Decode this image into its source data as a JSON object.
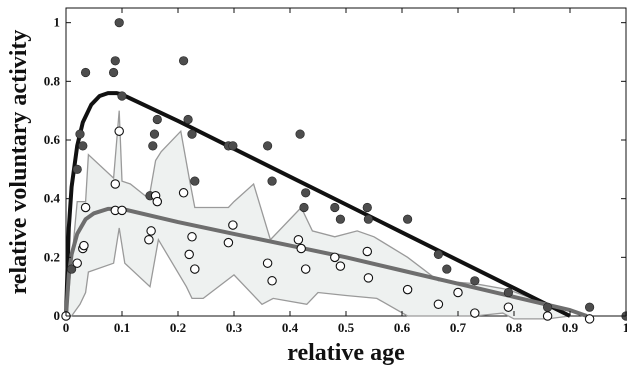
{
  "chart_data": {
    "type": "scatter",
    "xlabel": "relative age",
    "ylabel": "relative voluntary activity",
    "xlim": [
      0,
      1
    ],
    "ylim": [
      0,
      1.05
    ],
    "xticks": [
      "0",
      "0.1",
      "0.2",
      "0.3",
      "0.4",
      "0.5",
      "0.6",
      "0.7",
      "0.8",
      "0.9",
      "1"
    ],
    "yticks": [
      "0",
      "0.2",
      "0.4",
      "0.6",
      "0.8",
      "1"
    ],
    "grid": false,
    "colors": {
      "filled_points": "#4d4d4d",
      "upper_curve": "#111111",
      "lower_curve": "#6e6e6e",
      "band_fill": "#eef1f0",
      "band_edge": "#9a9a9a"
    },
    "series": [
      {
        "style": "filled-points",
        "points": [
          [
            0.01,
            0.16
          ],
          [
            0.02,
            0.5
          ],
          [
            0.025,
            0.62
          ],
          [
            0.03,
            0.58
          ],
          [
            0.035,
            0.83
          ],
          [
            0.085,
            0.83
          ],
          [
            0.088,
            0.87
          ],
          [
            0.095,
            1.0
          ],
          [
            0.1,
            0.75
          ],
          [
            0.15,
            0.41
          ],
          [
            0.155,
            0.58
          ],
          [
            0.158,
            0.62
          ],
          [
            0.163,
            0.67
          ],
          [
            0.21,
            0.87
          ],
          [
            0.218,
            0.67
          ],
          [
            0.225,
            0.62
          ],
          [
            0.23,
            0.46
          ],
          [
            0.29,
            0.58
          ],
          [
            0.298,
            0.58
          ],
          [
            0.36,
            0.58
          ],
          [
            0.368,
            0.46
          ],
          [
            0.418,
            0.62
          ],
          [
            0.425,
            0.37
          ],
          [
            0.428,
            0.42
          ],
          [
            0.48,
            0.37
          ],
          [
            0.49,
            0.33
          ],
          [
            0.538,
            0.37
          ],
          [
            0.54,
            0.33
          ],
          [
            0.61,
            0.33
          ],
          [
            0.665,
            0.21
          ],
          [
            0.68,
            0.16
          ],
          [
            0.73,
            0.12
          ],
          [
            0.79,
            0.08
          ],
          [
            0.86,
            0.03
          ],
          [
            0.935,
            0.03
          ],
          [
            1.0,
            0.0
          ]
        ]
      },
      {
        "style": "open-points",
        "points": [
          [
            0.0,
            0.0
          ],
          [
            0.02,
            0.18
          ],
          [
            0.03,
            0.23
          ],
          [
            0.032,
            0.24
          ],
          [
            0.035,
            0.37
          ],
          [
            0.088,
            0.45
          ],
          [
            0.088,
            0.36
          ],
          [
            0.095,
            0.63
          ],
          [
            0.1,
            0.36
          ],
          [
            0.148,
            0.26
          ],
          [
            0.152,
            0.29
          ],
          [
            0.16,
            0.41
          ],
          [
            0.163,
            0.39
          ],
          [
            0.21,
            0.42
          ],
          [
            0.22,
            0.21
          ],
          [
            0.225,
            0.27
          ],
          [
            0.23,
            0.16
          ],
          [
            0.29,
            0.25
          ],
          [
            0.298,
            0.31
          ],
          [
            0.36,
            0.18
          ],
          [
            0.368,
            0.12
          ],
          [
            0.415,
            0.26
          ],
          [
            0.42,
            0.23
          ],
          [
            0.428,
            0.16
          ],
          [
            0.48,
            0.2
          ],
          [
            0.49,
            0.17
          ],
          [
            0.538,
            0.22
          ],
          [
            0.54,
            0.13
          ],
          [
            0.61,
            0.09
          ],
          [
            0.665,
            0.04
          ],
          [
            0.7,
            0.08
          ],
          [
            0.73,
            0.01
          ],
          [
            0.79,
            0.03
          ],
          [
            0.86,
            0.0
          ],
          [
            0.935,
            -0.01
          ]
        ]
      },
      {
        "style": "upper-fit-curve",
        "points": [
          [
            0.0,
            0.0
          ],
          [
            0.005,
            0.3
          ],
          [
            0.01,
            0.44
          ],
          [
            0.02,
            0.58
          ],
          [
            0.03,
            0.66
          ],
          [
            0.045,
            0.72
          ],
          [
            0.06,
            0.75
          ],
          [
            0.075,
            0.76
          ],
          [
            0.09,
            0.76
          ],
          [
            0.1,
            0.755
          ],
          [
            0.2,
            0.665
          ],
          [
            0.3,
            0.57
          ],
          [
            0.4,
            0.475
          ],
          [
            0.5,
            0.38
          ],
          [
            0.6,
            0.285
          ],
          [
            0.7,
            0.19
          ],
          [
            0.8,
            0.095
          ],
          [
            0.9,
            0.0
          ]
        ]
      },
      {
        "style": "lower-fit-curve",
        "points": [
          [
            0.0,
            0.0
          ],
          [
            0.005,
            0.14
          ],
          [
            0.01,
            0.21
          ],
          [
            0.02,
            0.28
          ],
          [
            0.035,
            0.33
          ],
          [
            0.05,
            0.35
          ],
          [
            0.075,
            0.365
          ],
          [
            0.1,
            0.365
          ],
          [
            0.2,
            0.32
          ],
          [
            0.3,
            0.28
          ],
          [
            0.4,
            0.24
          ],
          [
            0.5,
            0.2
          ],
          [
            0.6,
            0.155
          ],
          [
            0.7,
            0.11
          ],
          [
            0.8,
            0.065
          ],
          [
            0.9,
            0.02
          ],
          [
            0.93,
            0.0
          ]
        ]
      },
      {
        "style": "band",
        "upper": [
          [
            0.0,
            0.0
          ],
          [
            0.005,
            0.08
          ],
          [
            0.02,
            0.39
          ],
          [
            0.035,
            0.39
          ],
          [
            0.04,
            0.55
          ],
          [
            0.085,
            0.47
          ],
          [
            0.095,
            0.7
          ],
          [
            0.1,
            0.46
          ],
          [
            0.115,
            0.45
          ],
          [
            0.148,
            0.4
          ],
          [
            0.16,
            0.53
          ],
          [
            0.17,
            0.56
          ],
          [
            0.205,
            0.63
          ],
          [
            0.22,
            0.47
          ],
          [
            0.23,
            0.37
          ],
          [
            0.29,
            0.37
          ],
          [
            0.3,
            0.39
          ],
          [
            0.335,
            0.45
          ],
          [
            0.365,
            0.26
          ],
          [
            0.42,
            0.37
          ],
          [
            0.44,
            0.29
          ],
          [
            0.48,
            0.27
          ],
          [
            0.52,
            0.29
          ],
          [
            0.55,
            0.27
          ],
          [
            0.61,
            0.2
          ],
          [
            0.665,
            0.12
          ],
          [
            0.73,
            0.11
          ],
          [
            0.79,
            0.09
          ],
          [
            0.86,
            0.04
          ],
          [
            0.9,
            0.0
          ]
        ],
        "lower": [
          [
            0.9,
            0.0
          ],
          [
            0.86,
            -0.01
          ],
          [
            0.8,
            -0.01
          ],
          [
            0.78,
            0.01
          ],
          [
            0.73,
            0.0
          ],
          [
            0.665,
            0.0
          ],
          [
            0.61,
            0.0
          ],
          [
            0.555,
            0.06
          ],
          [
            0.5,
            0.07
          ],
          [
            0.45,
            0.08
          ],
          [
            0.43,
            0.04
          ],
          [
            0.37,
            0.06
          ],
          [
            0.35,
            0.04
          ],
          [
            0.3,
            0.14
          ],
          [
            0.245,
            0.06
          ],
          [
            0.225,
            0.06
          ],
          [
            0.215,
            0.1
          ],
          [
            0.165,
            0.26
          ],
          [
            0.15,
            0.1
          ],
          [
            0.105,
            0.18
          ],
          [
            0.095,
            0.3
          ],
          [
            0.085,
            0.18
          ],
          [
            0.04,
            0.15
          ],
          [
            0.035,
            0.08
          ],
          [
            0.025,
            0.04
          ],
          [
            0.01,
            0.0
          ],
          [
            0.0,
            0.0
          ]
        ]
      }
    ]
  }
}
